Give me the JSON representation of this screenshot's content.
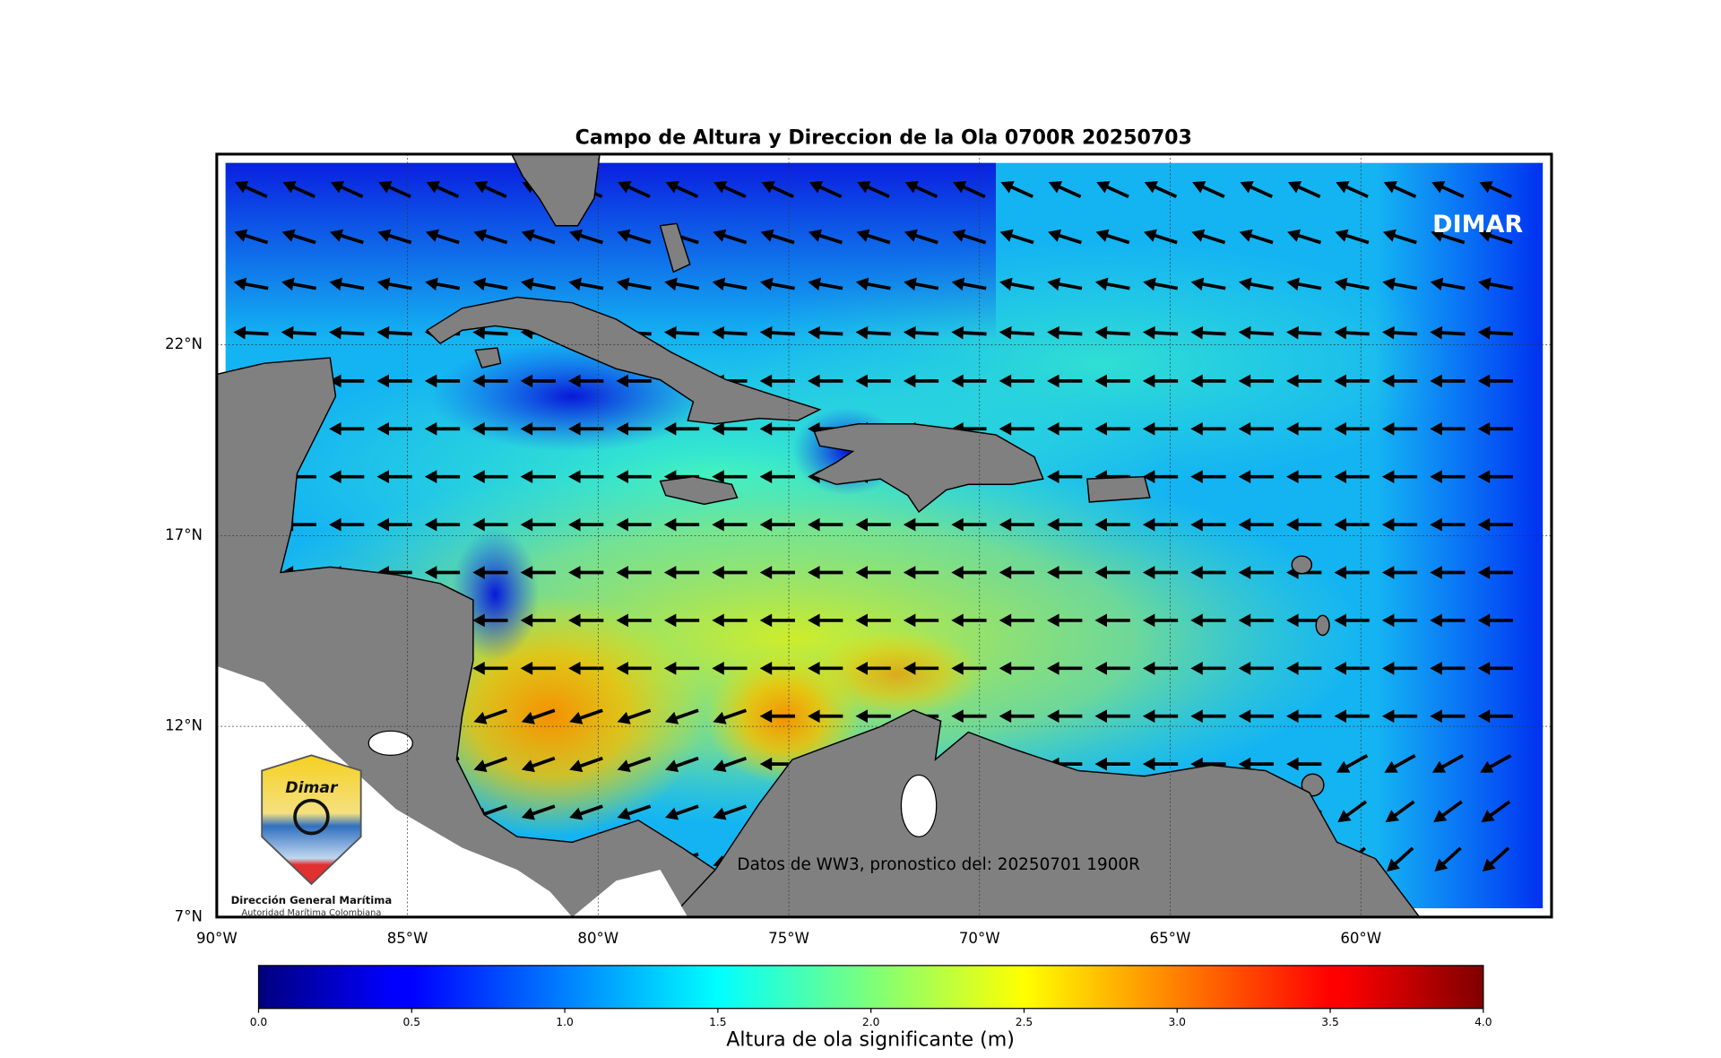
{
  "title": "Campo de Altura y Direccion de la Ola 0700R 20250703",
  "watermark": "DIMAR",
  "annotation": "Datos de WW3, pronostico del: 20250701 1900R",
  "logo": {
    "name": "Dimar",
    "org": "Dirección General Marítima",
    "subtitle": "Autoridad Marítima Colombiana"
  },
  "map": {
    "lon_range": [
      -90,
      -55
    ],
    "lat_range": [
      7,
      27
    ],
    "lon_ticks": [
      {
        "value": -90,
        "label": "90°W"
      },
      {
        "value": -85,
        "label": "85°W"
      },
      {
        "value": -80,
        "label": "80°W"
      },
      {
        "value": -75,
        "label": "75°W"
      },
      {
        "value": -70,
        "label": "70°W"
      },
      {
        "value": -65,
        "label": "65°W"
      },
      {
        "value": -60,
        "label": "60°W"
      }
    ],
    "lat_ticks": [
      {
        "value": 7,
        "label": "7°N"
      },
      {
        "value": 12,
        "label": "12°N"
      },
      {
        "value": 17,
        "label": "17°N"
      },
      {
        "value": 22,
        "label": "22°N"
      }
    ]
  },
  "colorbar": {
    "label": "Altura de ola significante (m)",
    "colormap": "jet",
    "range": [
      0,
      4
    ],
    "ticks": [
      {
        "value": 0,
        "label": "0.0"
      },
      0.5,
      {
        "value": 1,
        "label": "1.0"
      },
      1.5,
      {
        "value": 2,
        "label": "2.0"
      },
      2.5,
      {
        "value": 3,
        "label": "3.0"
      },
      3.5,
      {
        "value": 4,
        "label": "4.0"
      }
    ]
  }
}
